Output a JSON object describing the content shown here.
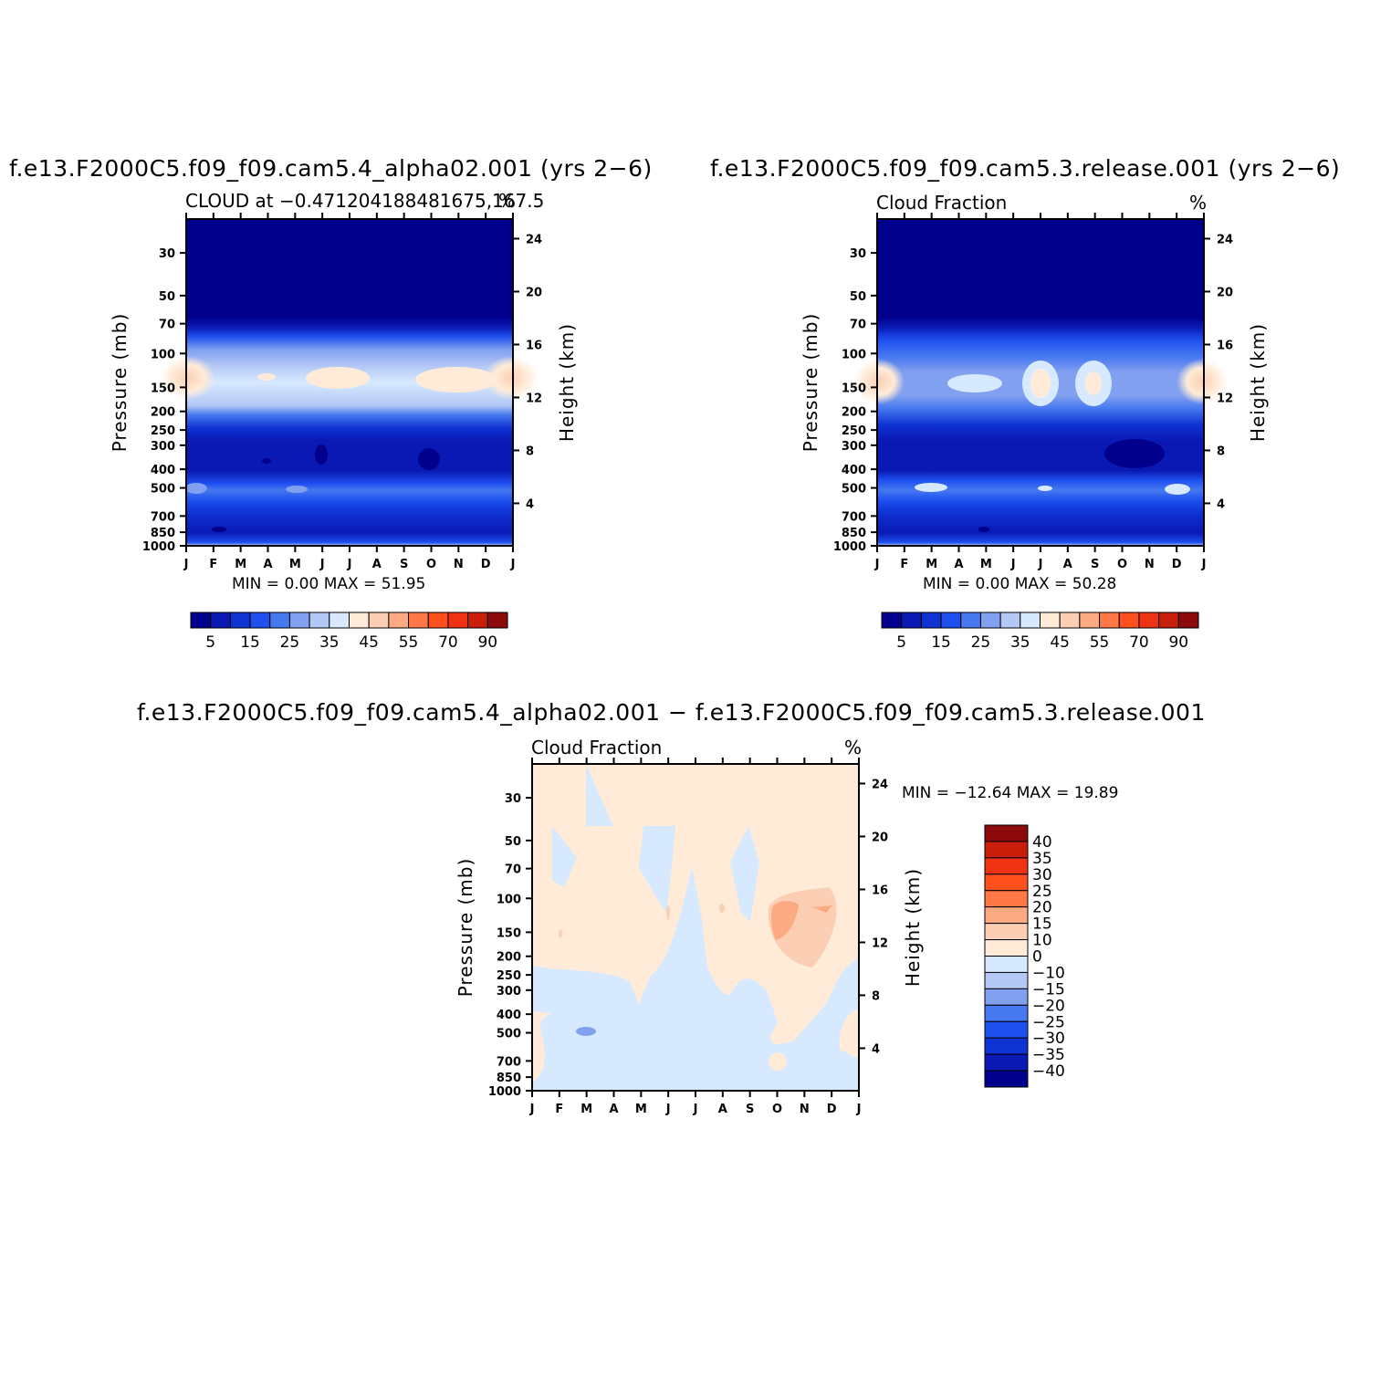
{
  "chart_data": [
    {
      "type": "contour",
      "title": "f.e13.F2000C5.f09_f09.cam5.4_alpha02.001 (yrs 2−6)",
      "subtitle": "CLOUD at −0.471204188481675,167.5",
      "units": "%",
      "xlabel": "",
      "ylabel": "Pressure (mb)",
      "ylabel_right": "Height (km)",
      "x_ticks": [
        "J",
        "F",
        "M",
        "A",
        "M",
        "J",
        "J",
        "A",
        "S",
        "O",
        "N",
        "D",
        "J"
      ],
      "y_ticks": [
        30,
        50,
        70,
        100,
        150,
        200,
        250,
        300,
        400,
        500,
        700,
        850,
        1000
      ],
      "y_ticks_right": [
        24,
        20,
        16,
        12,
        8,
        4
      ],
      "stats": "MIN =    0.00  MAX =   51.95",
      "colorbar_labels": [
        "5",
        "15",
        "25",
        "35",
        "45",
        "55",
        "70",
        "90"
      ],
      "colors": [
        "#00008c",
        "#0a19b4",
        "#0f32d2",
        "#1e50f0",
        "#4678f0",
        "#82a0f0",
        "#b4c8f5",
        "#d7e9ff",
        "#ffebd7",
        "#fccfb4",
        "#fcaa82",
        "#ff7846",
        "#ff501e",
        "#f03214",
        "#c81e0a",
        "#8c0a0a"
      ],
      "data_range": [
        0,
        51.95
      ]
    },
    {
      "type": "contour",
      "title": "f.e13.F2000C5.f09_f09.cam5.3.release.001 (yrs 2−6)",
      "subtitle": "Cloud Fraction",
      "units": "%",
      "xlabel": "",
      "ylabel": "Pressure (mb)",
      "ylabel_right": "Height (km)",
      "x_ticks": [
        "J",
        "F",
        "M",
        "A",
        "M",
        "J",
        "J",
        "A",
        "S",
        "O",
        "N",
        "D",
        "J"
      ],
      "y_ticks": [
        30,
        50,
        70,
        100,
        150,
        200,
        250,
        300,
        400,
        500,
        700,
        850,
        1000
      ],
      "y_ticks_right": [
        24,
        20,
        16,
        12,
        8,
        4
      ],
      "stats": "MIN =    0.00  MAX =   50.28",
      "colorbar_labels": [
        "5",
        "15",
        "25",
        "35",
        "45",
        "55",
        "70",
        "90"
      ],
      "data_range": [
        0,
        50.28
      ]
    },
    {
      "type": "contour",
      "title": "f.e13.F2000C5.f09_f09.cam5.4_alpha02.001 − f.e13.F2000C5.f09_f09.cam5.3.release.001",
      "subtitle": "Cloud Fraction",
      "units": "%",
      "xlabel": "",
      "ylabel": "Pressure (mb)",
      "ylabel_right": "Height (km)",
      "x_ticks": [
        "J",
        "F",
        "M",
        "A",
        "M",
        "J",
        "J",
        "A",
        "S",
        "O",
        "N",
        "D",
        "J"
      ],
      "y_ticks": [
        30,
        50,
        70,
        100,
        150,
        200,
        250,
        300,
        400,
        500,
        700,
        850,
        1000
      ],
      "y_ticks_right": [
        24,
        20,
        16,
        12,
        8,
        4
      ],
      "stats": "MIN = −12.64  MAX =   19.89",
      "colorbar_labels": [
        "40",
        "35",
        "30",
        "25",
        "20",
        "15",
        "10",
        "0",
        "−10",
        "−15",
        "−20",
        "−25",
        "−30",
        "−35",
        "−40"
      ],
      "colors": [
        "#8c0a0a",
        "#c81e0a",
        "#f03214",
        "#ff501e",
        "#ff7846",
        "#fcaa82",
        "#fccfb4",
        "#ffebd7",
        "#d7e9ff",
        "#b4c8f5",
        "#82a0f0",
        "#4678f0",
        "#1e50f0",
        "#0f32d2",
        "#0a19b4",
        "#00008c"
      ],
      "data_range": [
        -12.64,
        19.89
      ]
    }
  ]
}
